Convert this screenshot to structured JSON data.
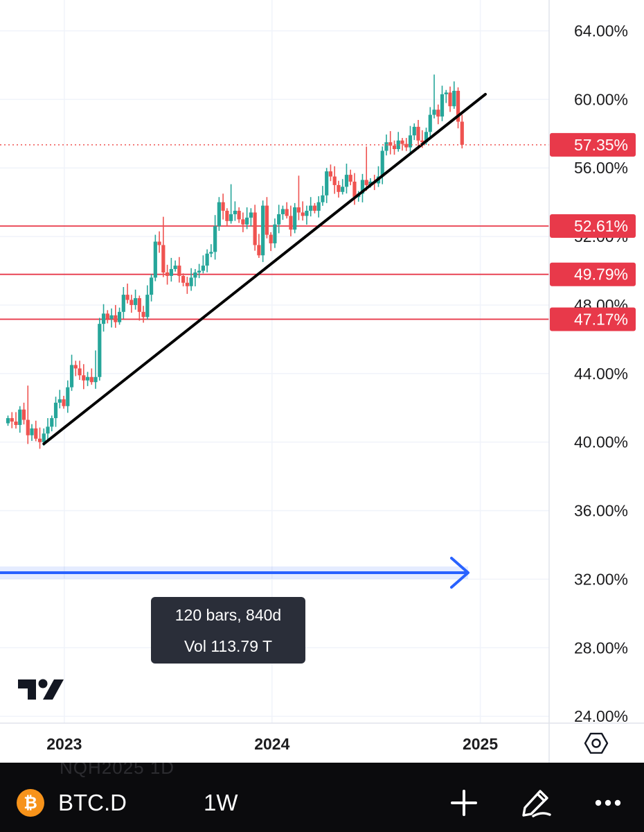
{
  "chart_data": {
    "type": "candlestick",
    "symbol": "BTC.D",
    "interval": "1W",
    "y_axis": {
      "ticks": [
        "64.00%",
        "60.00%",
        "56.00%",
        "52.00%",
        "48.00%",
        "44.00%",
        "40.00%",
        "36.00%",
        "32.00%",
        "28.00%",
        "24.00%"
      ],
      "tick_values": [
        64,
        60,
        56,
        52,
        48,
        44,
        40,
        36,
        32,
        28,
        24
      ],
      "range": [
        23.6,
        65.8
      ]
    },
    "x_axis": {
      "labels": [
        "2023",
        "2024",
        "2025"
      ],
      "label_dates": [
        "2023-01-01",
        "2024-01-01",
        "2025-01-01"
      ],
      "range": [
        "2022-09-10",
        "2025-05-02"
      ]
    },
    "current_price": {
      "label": "57.35%",
      "value": 57.35,
      "color": "#ef5350"
    },
    "horizontal_levels": [
      {
        "label": "52.61%",
        "value": 52.61
      },
      {
        "label": "49.79%",
        "value": 49.79
      },
      {
        "label": "47.17%",
        "value": 47.17
      }
    ],
    "trendline": {
      "start": {
        "date": "2022-11-26",
        "value": 39.9
      },
      "end": {
        "date": "2025-01-10",
        "value": 60.3
      }
    },
    "date_range_measure": {
      "bars": "120 bars, 840d",
      "volume": "Vol 113.79 T"
    },
    "candles_weekly_close": [
      41.4,
      41.2,
      41.0,
      41.9,
      41.3,
      40.4,
      40.8,
      40.2,
      40.0,
      40.5,
      40.9,
      41.4,
      42.3,
      42.5,
      42.1,
      43.2,
      44.5,
      44.3,
      43.9,
      43.6,
      43.8,
      43.5,
      43.8,
      46.9,
      47.5,
      47.2,
      47.4,
      47.0,
      47.6,
      48.6,
      48.3,
      48.0,
      48.4,
      47.6,
      47.3,
      48.6,
      49.6,
      51.7,
      51.5,
      49.9,
      49.7,
      50.1,
      50.3,
      49.7,
      49.3,
      49.1,
      49.6,
      49.9,
      50.0,
      50.3,
      51.0,
      51.1,
      52.6,
      54.0,
      53.5,
      52.9,
      53.3,
      53.5,
      53.0,
      52.7,
      53.1,
      53.4,
      51.5,
      50.9,
      53.8,
      52.1,
      51.6,
      52.7,
      53.3,
      53.6,
      53.2,
      52.4,
      53.7,
      53.4,
      53.2,
      53.5,
      53.8,
      53.5,
      54.0,
      54.4,
      55.8,
      55.5,
      55.0,
      54.6,
      54.9,
      55.6,
      55.2,
      54.3,
      54.5,
      55.3,
      55.0,
      55.2,
      55.1,
      55.5,
      57.0,
      57.5,
      57.3,
      57.1,
      57.6,
      57.4,
      57.2,
      57.9,
      58.4,
      57.6,
      57.5,
      58.1,
      59.1,
      59.4,
      59.0,
      60.3,
      60.4,
      59.6,
      60.5,
      58.7,
      57.35
    ]
  },
  "tooltip": {
    "line1": "120 bars, 840d",
    "line2": "Vol 113.79 T"
  },
  "bottom_bar": {
    "ghost_text": "NQH2025        1D",
    "symbol": "BTC.D",
    "interval": "1W",
    "coin_icon": "bitcoin-icon",
    "buttons": [
      "plus-icon",
      "pen-icon",
      "more-icon"
    ]
  },
  "colors": {
    "up": "#26a69a",
    "down": "#ef5350",
    "level": "#e8394a",
    "measure": "#2962ff",
    "trend": "#000000"
  }
}
